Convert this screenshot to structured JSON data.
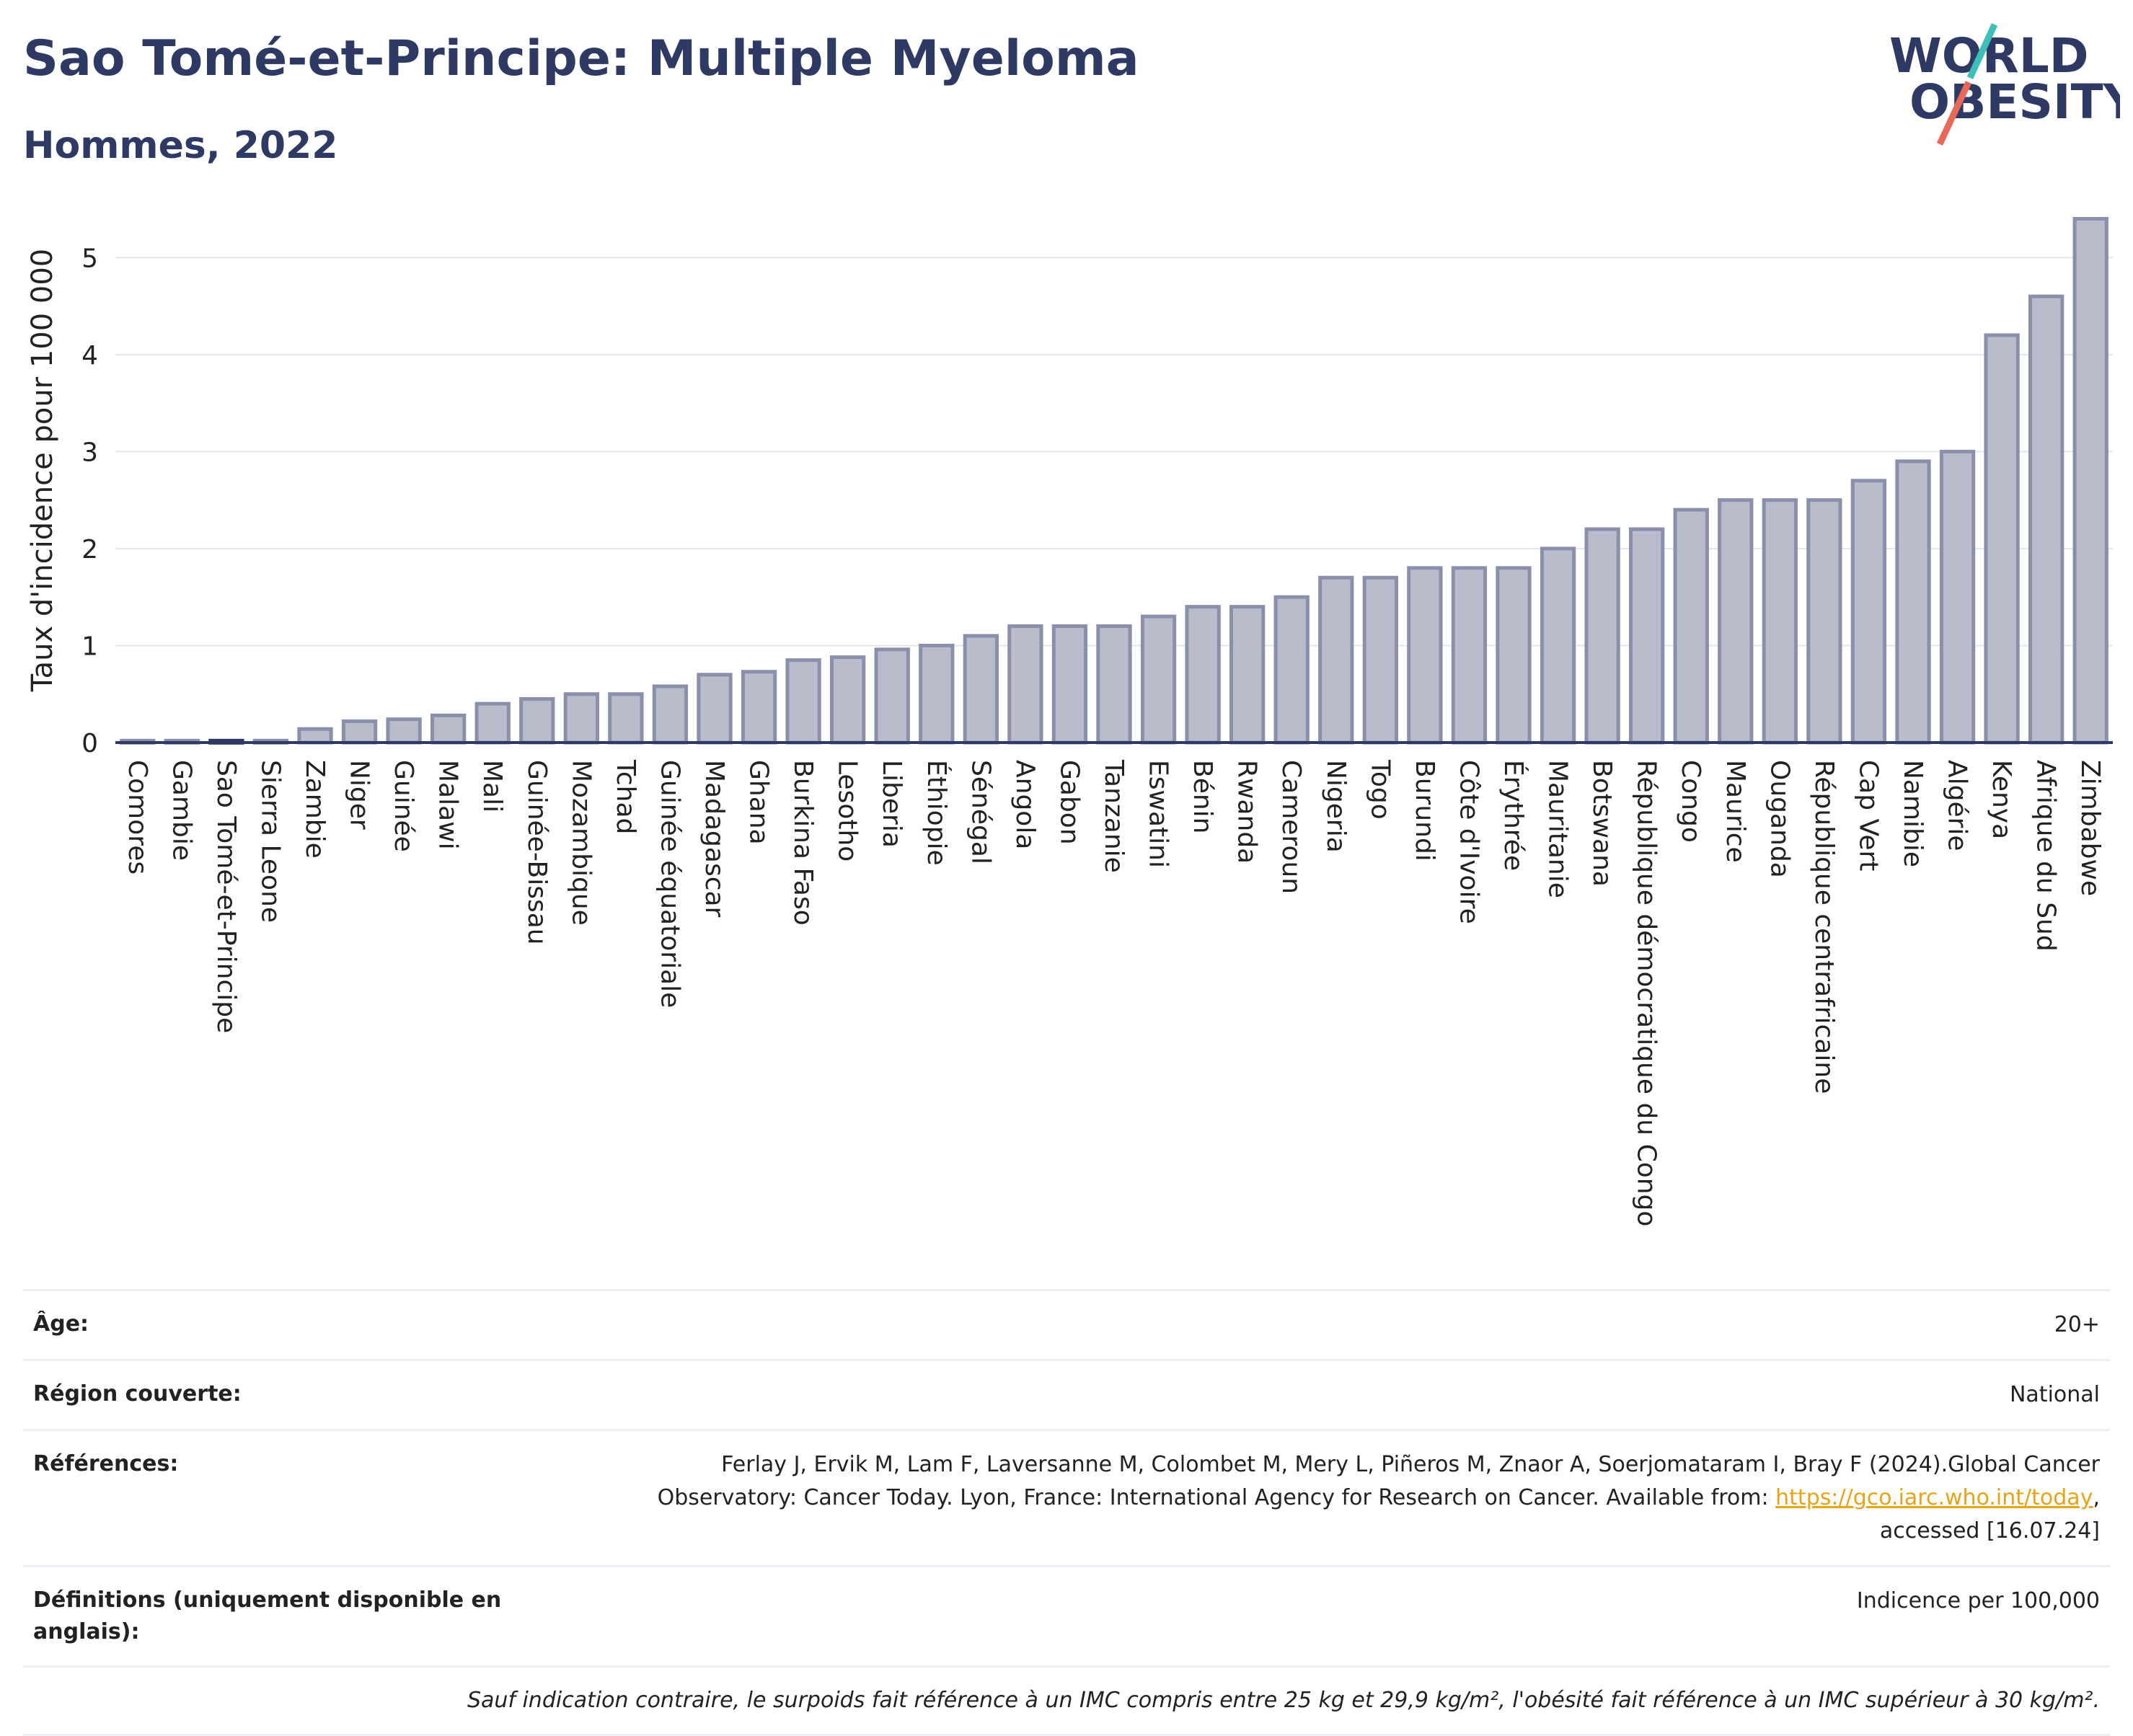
{
  "header": {
    "title": "Sao Tomé-et-Principe: Multiple Myeloma",
    "subtitle": "Hommes, 2022"
  },
  "logo": {
    "line1": "WORLD",
    "line2": "OBESITY",
    "colors": {
      "text": "#2e3a63",
      "slash_top": "#3bbfb8",
      "slash_bottom": "#e8685a"
    }
  },
  "chart_data": {
    "type": "bar",
    "ylabel": "Taux d'incidence pour 100 000",
    "xlabel": "",
    "ylim": [
      0,
      5.5
    ],
    "yticks": [
      0,
      1,
      2,
      3,
      4,
      5
    ],
    "grid": true,
    "highlight": "Sao Tomé-et-Principe",
    "colors": {
      "bar": "#b9bccb",
      "bar_border": "#8a90ab",
      "highlight": "#2e3a63",
      "axis": "#2e3a63",
      "grid": "#e4e6ec"
    },
    "categories": [
      "Comores",
      "Gambie",
      "Sao Tomé-et-Principe",
      "Sierra Leone",
      "Zambie",
      "Niger",
      "Guinée",
      "Malawi",
      "Mali",
      "Guinée-Bissau",
      "Mozambique",
      "Tchad",
      "Guinée équatoriale",
      "Madagascar",
      "Ghana",
      "Burkina Faso",
      "Lesotho",
      "Liberia",
      "Éthiopie",
      "Sénégal",
      "Angola",
      "Gabon",
      "Tanzanie",
      "Eswatini",
      "Bénin",
      "Rwanda",
      "Cameroun",
      "Nigeria",
      "Togo",
      "Burundi",
      "Côte d'Ivoire",
      "Érythrée",
      "Mauritanie",
      "Botswana",
      "République démocratique du Congo",
      "Congo",
      "Maurice",
      "Ouganda",
      "République centrafricaine",
      "Cap Vert",
      "Namibie",
      "Algérie",
      "Kenya",
      "Afrique du Sud",
      "Zimbabwe"
    ],
    "values": [
      0.02,
      0.02,
      0.02,
      0.02,
      0.14,
      0.22,
      0.24,
      0.28,
      0.4,
      0.45,
      0.5,
      0.5,
      0.58,
      0.7,
      0.73,
      0.85,
      0.88,
      0.96,
      1.0,
      1.1,
      1.2,
      1.2,
      1.2,
      1.3,
      1.4,
      1.4,
      1.5,
      1.7,
      1.7,
      1.8,
      1.8,
      1.8,
      2.0,
      2.2,
      2.2,
      2.4,
      2.5,
      2.5,
      2.5,
      2.7,
      2.9,
      3.0,
      4.2,
      4.6,
      5.4
    ]
  },
  "meta": {
    "age_label": "Âge:",
    "age_value": "20+",
    "region_label": "Région couverte:",
    "region_value": "National",
    "references_label": "Références:",
    "references_text_1": "Ferlay J, Ervik M, Lam F, Laversanne M, Colombet M, Mery L, Piñeros M, Znaor A, Soerjomataram I, Bray F (2024).Global Cancer",
    "references_text_2": "Observatory: Cancer Today. Lyon, France: International Agency for Research on Cancer. Available from: ",
    "references_link": "https://gco.iarc.who.int/today",
    "references_text_3": ",",
    "references_text_4": "accessed [16.07.24]",
    "definitions_label": "Définitions (uniquement disponible en anglais):",
    "definitions_value": "Indicence per 100,000",
    "note": "Sauf indication contraire, le surpoids fait référence à un IMC compris entre 25 kg et 29,9 kg/m², l'obésité fait référence à un IMC supérieur à 30 kg/m²."
  }
}
